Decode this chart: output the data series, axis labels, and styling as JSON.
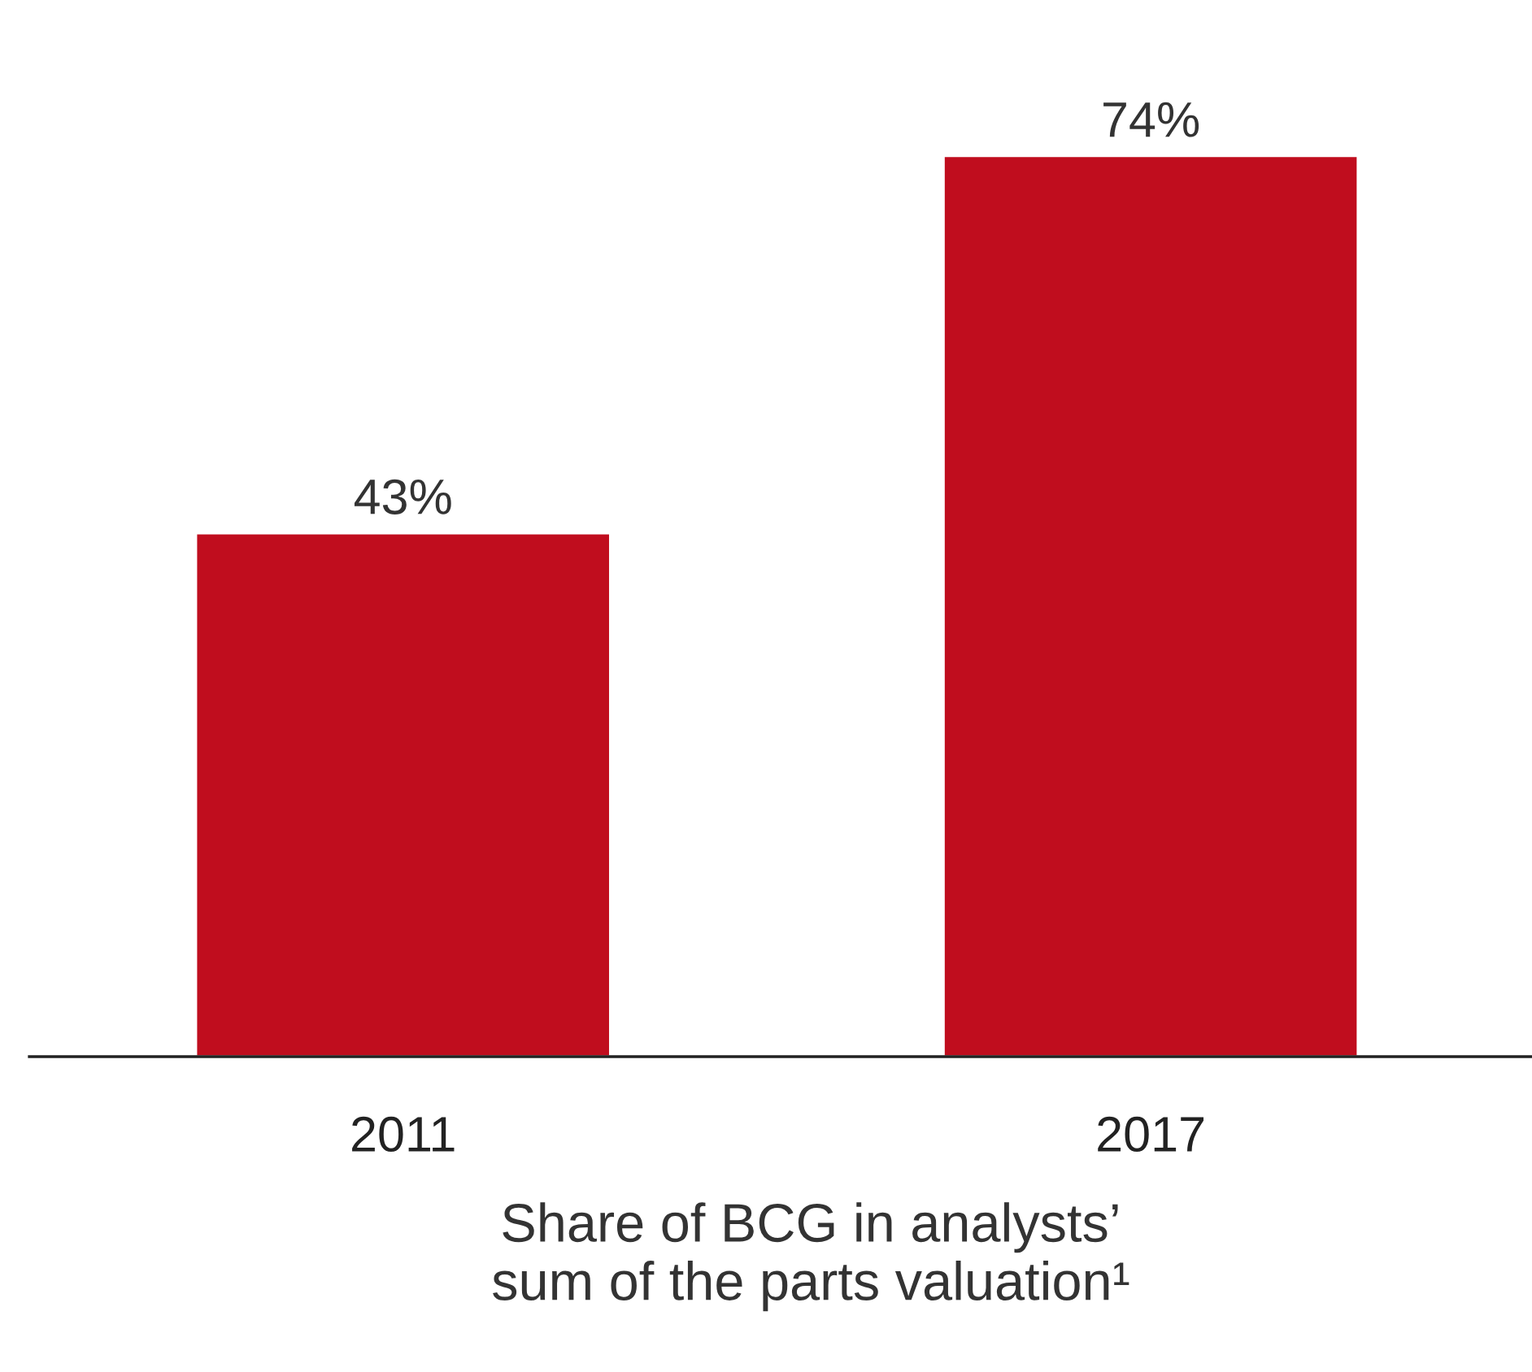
{
  "chart_data": {
    "type": "bar",
    "categories": [
      "2011",
      "2017"
    ],
    "values": [
      43,
      74
    ],
    "value_labels": [
      "43%",
      "74%"
    ],
    "color": "#c00d1e",
    "tick_labels": "x",
    "grid": false,
    "legend": false,
    "xlabel": "Share of BCG in analysts’\nsum of the parts valuation¹"
  }
}
